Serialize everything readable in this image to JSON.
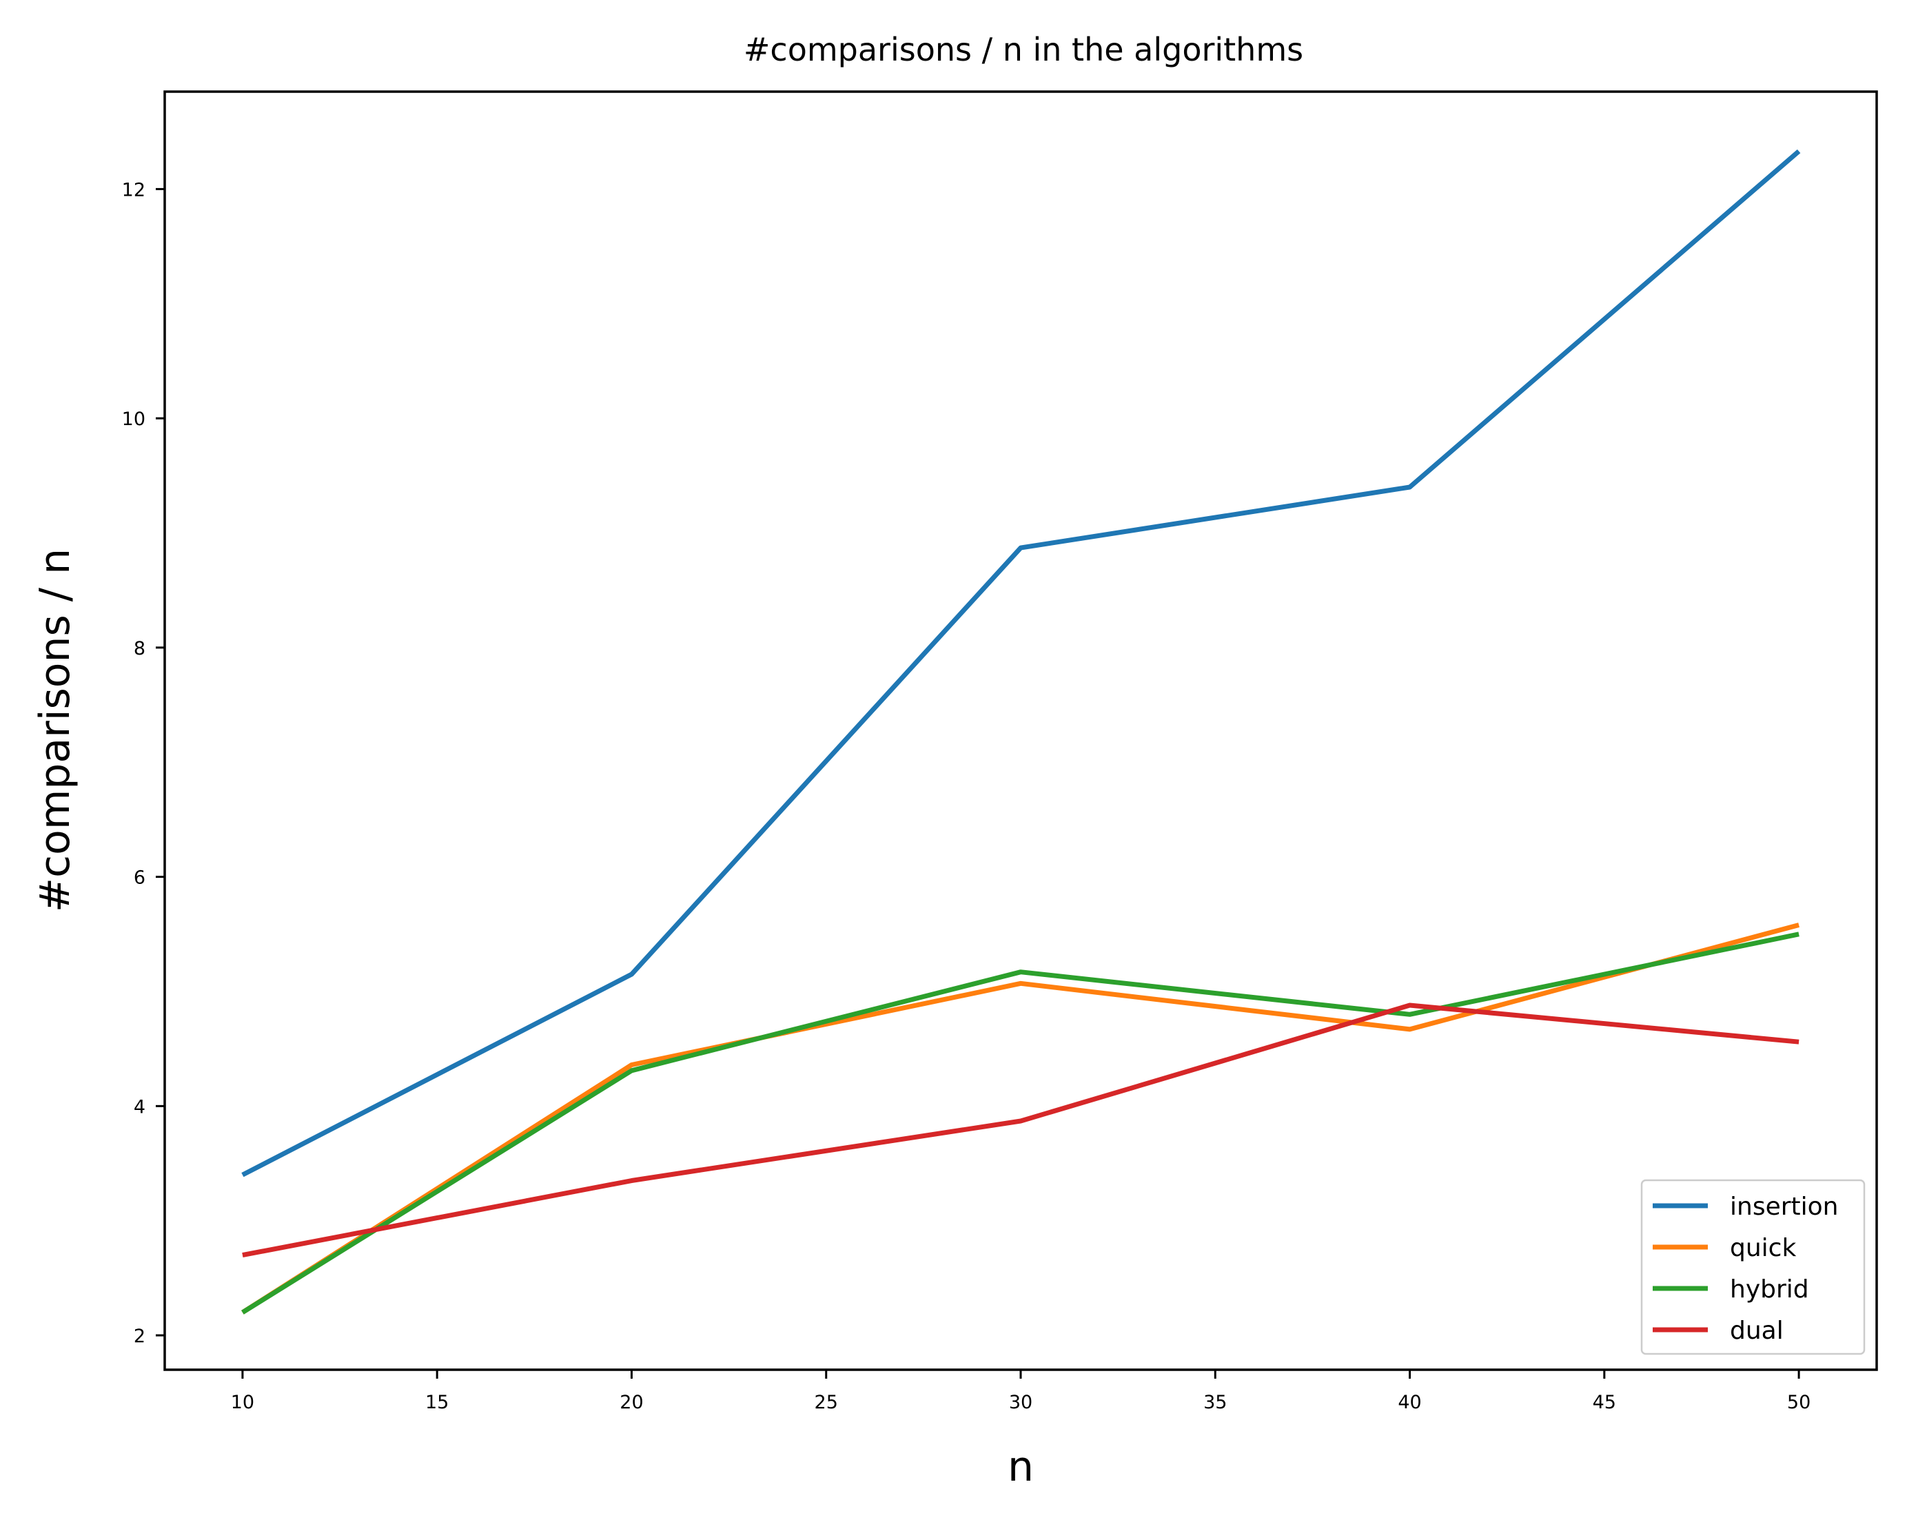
{
  "chart_data": {
    "type": "line",
    "title": "#comparisons / n in the algorithms",
    "xlabel": "n",
    "ylabel": "#comparisons / n",
    "x": [
      10,
      20,
      30,
      40,
      50
    ],
    "xlim": [
      8,
      52
    ],
    "ylim": [
      1.7,
      12.85
    ],
    "xticks": [
      10,
      15,
      20,
      25,
      30,
      35,
      40,
      45,
      50
    ],
    "yticks": [
      2,
      4,
      6,
      8,
      10,
      12
    ],
    "grid": false,
    "legend_position": "lower right",
    "series": [
      {
        "name": "insertion",
        "color": "#1f77b4",
        "values": [
          3.4,
          5.15,
          8.87,
          9.4,
          12.33
        ]
      },
      {
        "name": "quick",
        "color": "#ff7f0e",
        "values": [
          2.2,
          4.36,
          5.07,
          4.67,
          5.58
        ]
      },
      {
        "name": "hybrid",
        "color": "#2ca02c",
        "values": [
          2.2,
          4.31,
          5.17,
          4.8,
          5.5
        ]
      },
      {
        "name": "dual",
        "color": "#d62728",
        "values": [
          2.7,
          3.35,
          3.87,
          4.88,
          4.56
        ]
      }
    ]
  }
}
